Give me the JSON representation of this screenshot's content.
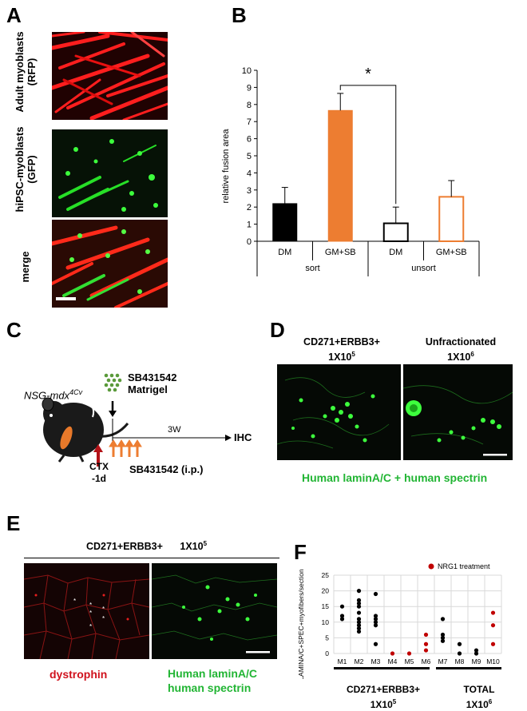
{
  "panels": {
    "A": {
      "letter": "A",
      "rows": [
        {
          "label_line1": "Adult myoblasts",
          "label_line2": "(RFP)"
        },
        {
          "label_line1": "hiPSC-myoblasts",
          "label_line2": "(GFP)"
        },
        {
          "label_line1": "merge",
          "label_line2": ""
        }
      ]
    },
    "B": {
      "letter": "B"
    },
    "C": {
      "letter": "C",
      "mouse_label": "NSG-mdx",
      "mouse_sup": "4Cv",
      "injection_line1": "SB431542",
      "injection_line2": "Matrigel",
      "duration": "3W",
      "endpoint": "IHC",
      "ctx_line1": "CTX",
      "ctx_line2": "-1d",
      "drug": "SB431542 (i.p.)"
    },
    "D": {
      "letter": "D",
      "left_title_line1": "CD271+ERBB3+",
      "left_title_line2": "1X10",
      "left_title_exp": "5",
      "right_title_line1": "Unfractionated",
      "right_title_line2": "1X10",
      "right_title_exp": "6",
      "caption": "Human laminA/C + human spectrin"
    },
    "E": {
      "letter": "E",
      "header": "CD271+ERBB3+",
      "header_count": "1X10",
      "header_exp": "5",
      "left_caption": "dystrophin",
      "right_caption_line1": "Human laminA/C",
      "right_caption_line2": "human spectrin"
    },
    "F": {
      "letter": "F",
      "legend": "NRG1 treatment",
      "group1_line1": "CD271+ERBB3+",
      "group1_line2": "1X10",
      "group1_exp": "5",
      "group2_line1": "TOTAL",
      "group2_line2": "1X10",
      "group2_exp": "6"
    }
  },
  "colors": {
    "black_bar": "#000000",
    "orange": "#ed7d31",
    "nrg1_red": "#c00000",
    "green_text": "#22b534",
    "red_text": "#d0121d"
  },
  "chart_data": [
    {
      "panel": "B",
      "type": "bar",
      "title": "",
      "ylabel": "relative  fusion area",
      "ylim": [
        0,
        10
      ],
      "yticks": [
        "0",
        "1",
        "2",
        "3",
        "4",
        "5",
        "6",
        "7",
        "8",
        "9",
        "10"
      ],
      "categories": [
        "DM",
        "GM+SB",
        "DM",
        "GM+SB"
      ],
      "groups": [
        "sort",
        "unsort"
      ],
      "values": [
        2.2,
        7.65,
        1.05,
        2.6
      ],
      "errors": [
        0.95,
        1.0,
        0.95,
        0.95
      ],
      "fills": [
        "#000000",
        "#ed7d31",
        "#ffffff",
        "#ffffff"
      ],
      "strokes": [
        "#000000",
        "#ed7d31",
        "#000000",
        "#ed7d31"
      ],
      "significance": "*",
      "grid": false
    },
    {
      "panel": "F",
      "type": "scatter",
      "title": "",
      "ylabel": "LAMINA/C+SPEC+myofibers/section",
      "ylim": [
        0,
        25
      ],
      "yticks": [
        "0",
        "5",
        "10",
        "15",
        "20",
        "25"
      ],
      "categories": [
        "M1",
        "M2",
        "M3",
        "M4",
        "M5",
        "M6",
        "M7",
        "M8",
        "M9",
        "M10"
      ],
      "grid": true,
      "legend": "top-right",
      "series": [
        {
          "name": "",
          "color": "#000000",
          "points": [
            {
              "x": "M1",
              "y": 15
            },
            {
              "x": "M1",
              "y": 12
            },
            {
              "x": "M1",
              "y": 11
            },
            {
              "x": "M2",
              "y": 20
            },
            {
              "x": "M2",
              "y": 17
            },
            {
              "x": "M2",
              "y": 16
            },
            {
              "x": "M2",
              "y": 15
            },
            {
              "x": "M2",
              "y": 13
            },
            {
              "x": "M2",
              "y": 11
            },
            {
              "x": "M2",
              "y": 10
            },
            {
              "x": "M2",
              "y": 9
            },
            {
              "x": "M2",
              "y": 8
            },
            {
              "x": "M2",
              "y": 7
            },
            {
              "x": "M3",
              "y": 19
            },
            {
              "x": "M3",
              "y": 12
            },
            {
              "x": "M3",
              "y": 11
            },
            {
              "x": "M3",
              "y": 10
            },
            {
              "x": "M3",
              "y": 9
            },
            {
              "x": "M3",
              "y": 3
            },
            {
              "x": "M7",
              "y": 11
            },
            {
              "x": "M7",
              "y": 6
            },
            {
              "x": "M7",
              "y": 5
            },
            {
              "x": "M7",
              "y": 4
            },
            {
              "x": "M8",
              "y": 3
            },
            {
              "x": "M8",
              "y": 0
            },
            {
              "x": "M9",
              "y": 1
            },
            {
              "x": "M9",
              "y": 0
            }
          ]
        },
        {
          "name": "NRG1 treatment",
          "color": "#c00000",
          "points": [
            {
              "x": "M4",
              "y": 0
            },
            {
              "x": "M5",
              "y": 0
            },
            {
              "x": "M6",
              "y": 6
            },
            {
              "x": "M6",
              "y": 3
            },
            {
              "x": "M6",
              "y": 1
            },
            {
              "x": "M10",
              "y": 13
            },
            {
              "x": "M10",
              "y": 9
            },
            {
              "x": "M10",
              "y": 3
            }
          ]
        }
      ]
    }
  ]
}
